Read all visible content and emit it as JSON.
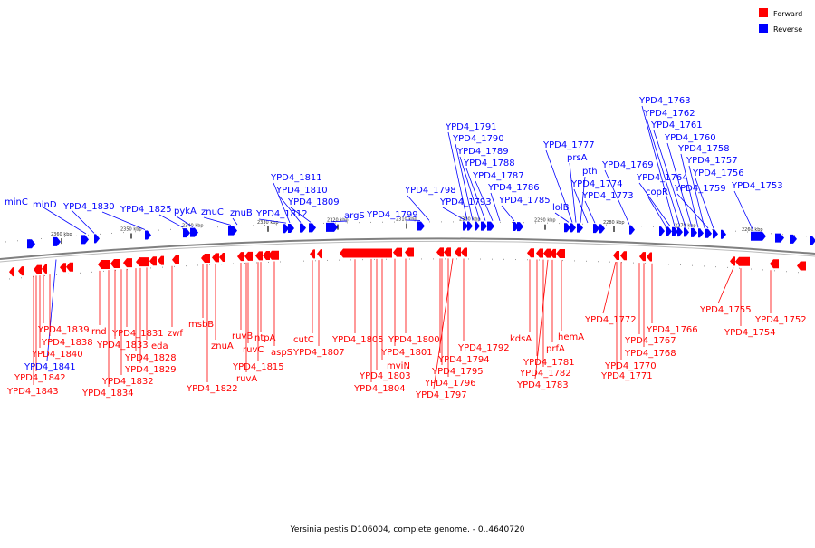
{
  "colors": {
    "forward": "#ff0000",
    "reverse": "#0000ff",
    "backbone": "#808080"
  },
  "legend": {
    "forward": "Forward",
    "reverse": "Reverse"
  },
  "caption": "Yersinia pestis D106004, complete genome. - 0..4640720",
  "ticks": [
    "2360 kbp",
    "2350 kbp",
    "2340 kbp",
    "2330 kbp",
    "2320 kbp",
    "2310 kbp",
    "2300 kbp",
    "2290 kbp",
    "2280 kbp",
    "2270 kbp",
    "2260 kbp"
  ],
  "reverse_labels": [
    "minC",
    "minD",
    "YPD4_1830",
    "YPD4_1825",
    "pykA",
    "znuC",
    "znuB",
    "YPD4_1812",
    "YPD4_1811",
    "YPD4_1810",
    "YPD4_1809",
    "argS",
    "YPD4_1799",
    "YPD4_1798",
    "YPD4_1793",
    "YPD4_1791",
    "YPD4_1790",
    "YPD4_1789",
    "YPD4_1788",
    "YPD4_1787",
    "YPD4_1786",
    "YPD4_1785",
    "lolB",
    "YPD4_1777",
    "prsA",
    "pth",
    "YPD4_1774",
    "YPD4_1773",
    "YPD4_1769",
    "copR",
    "YPD4_1764",
    "YPD4_1763",
    "YPD4_1762",
    "YPD4_1761",
    "YPD4_1760",
    "YPD4_1759",
    "YPD4_1758",
    "YPD4_1757",
    "YPD4_1756",
    "YPD4_1753",
    "YPD4_1841"
  ],
  "forward_labels": [
    "YPD4_1839",
    "YPD4_1838",
    "YPD4_1840",
    "YPD4_1842",
    "YPD4_1843",
    "rnd",
    "YPD4_1833",
    "YPD4_1831",
    "YPD4_1832",
    "YPD4_1834",
    "eda",
    "YPD4_1828",
    "YPD4_1829",
    "zwf",
    "msbB",
    "znuA",
    "YPD4_1822",
    "ruvB",
    "ruvC",
    "ruvA",
    "ntpA",
    "YPD4_1815",
    "aspS",
    "cutC",
    "YPD4_1807",
    "YPD4_1805",
    "YPD4_1803",
    "YPD4_1804",
    "mviN",
    "YPD4_1801",
    "YPD4_1800",
    "YPD4_1794",
    "YPD4_1795",
    "YPD4_1796",
    "YPD4_1797",
    "YPD4_1792",
    "kdsA",
    "YPD4_1781",
    "YPD4_1782",
    "YPD4_1783",
    "prfA",
    "hemA",
    "YPD4_1772",
    "YPD4_1770",
    "YPD4_1771",
    "YPD4_1767",
    "YPD4_1768",
    "YPD4_1766",
    "YPD4_1755",
    "YPD4_1754",
    "YPD4_1752"
  ]
}
